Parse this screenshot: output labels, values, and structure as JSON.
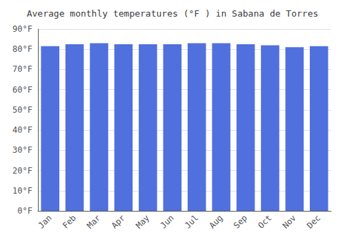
{
  "chart_data": {
    "type": "bar",
    "title": "Average monthly temperatures (°F ) in Sabana de Torres",
    "categories": [
      "Jan",
      "Feb",
      "Mar",
      "Apr",
      "May",
      "Jun",
      "Jul",
      "Aug",
      "Sep",
      "Oct",
      "Nov",
      "Dec"
    ],
    "values": [
      81.5,
      82.5,
      83.0,
      82.5,
      82.5,
      82.5,
      83.0,
      83.0,
      82.5,
      82.0,
      81.0,
      81.5
    ],
    "ylim": [
      0,
      90
    ],
    "yticks": [
      {
        "value": 0,
        "label": "0°F"
      },
      {
        "value": 10,
        "label": "10°F"
      },
      {
        "value": 20,
        "label": "20°F"
      },
      {
        "value": 30,
        "label": "30°F"
      },
      {
        "value": 40,
        "label": "40°F"
      },
      {
        "value": 50,
        "label": "50°F"
      },
      {
        "value": 60,
        "label": "60°F"
      },
      {
        "value": 70,
        "label": "70°F"
      },
      {
        "value": 80,
        "label": "80°F"
      },
      {
        "value": 90,
        "label": "90°F"
      }
    ],
    "grid": true
  }
}
